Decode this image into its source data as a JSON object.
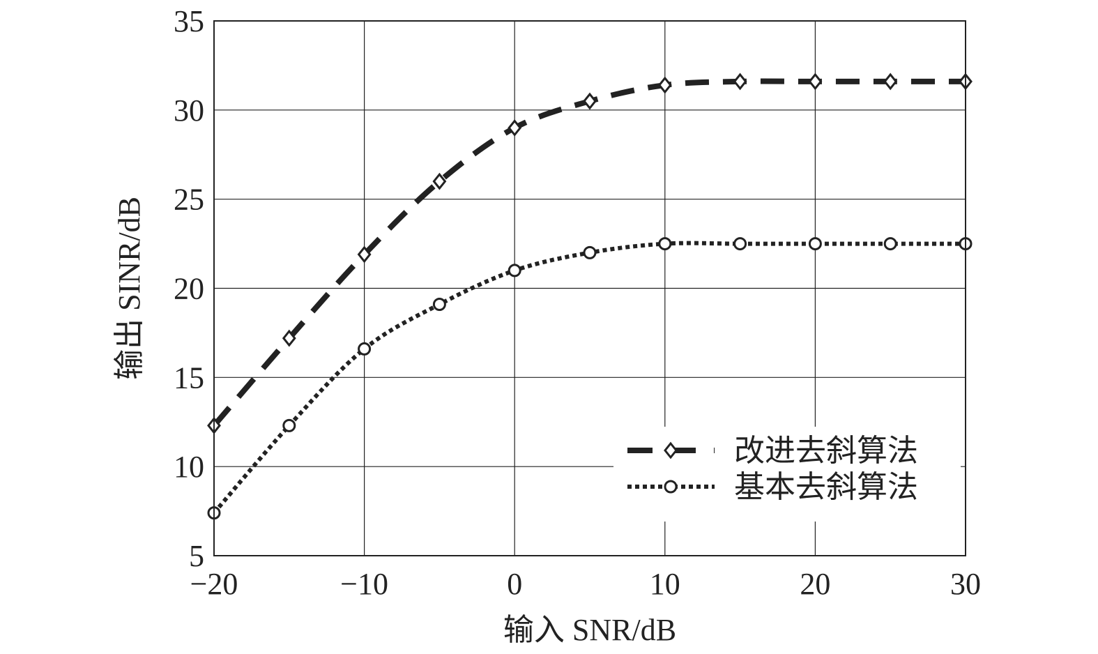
{
  "chart_data": {
    "type": "line",
    "xlabel": "输入 SNR/dB",
    "ylabel": "输出 SINR/dB",
    "xlim": [
      -20,
      30
    ],
    "ylim": [
      5,
      35
    ],
    "xticks": [
      -20,
      -10,
      0,
      10,
      20,
      30
    ],
    "yticks": [
      5,
      10,
      15,
      20,
      25,
      30,
      35
    ],
    "xtick_labels": [
      "−20",
      "−10",
      "0",
      "10",
      "20",
      "30"
    ],
    "ytick_labels": [
      "5",
      "10",
      "15",
      "20",
      "25",
      "30",
      "35"
    ],
    "grid": true,
    "legend_position": "bottom-right",
    "x": [
      -20,
      -15,
      -10,
      -5,
      0,
      5,
      10,
      15,
      20,
      25,
      30
    ],
    "series": [
      {
        "name": "改进去斜算法",
        "marker": "diamond",
        "line_style": "dashed",
        "color": "#222222",
        "values": [
          12.3,
          17.2,
          21.9,
          26.0,
          29.0,
          30.5,
          31.4,
          31.6,
          31.6,
          31.6,
          31.6
        ]
      },
      {
        "name": "基本去斜算法",
        "marker": "circle",
        "line_style": "dotted",
        "color": "#222222",
        "values": [
          7.4,
          12.3,
          16.6,
          19.1,
          21.0,
          22.0,
          22.5,
          22.5,
          22.5,
          22.5,
          22.5
        ]
      }
    ]
  }
}
